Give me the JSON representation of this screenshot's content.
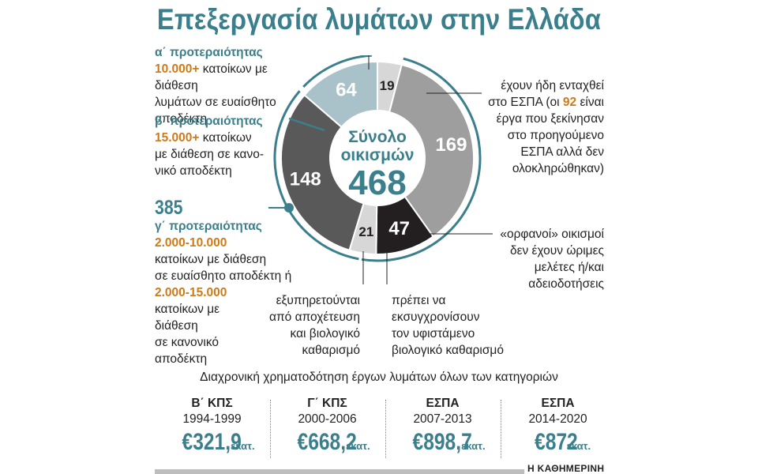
{
  "title": "Επεξεργασία λυμάτων στην Ελλάδα",
  "center": {
    "label_line1": "Σύνολο",
    "label_line2": "οικισμών",
    "total": "468"
  },
  "colors": {
    "teal": "#3b7f8c",
    "orange": "#cf7a16",
    "grey": "#9e9e9e",
    "dark_grey": "#595959",
    "light_teal": "#a9c1c8",
    "black": "#231f20",
    "light_grey": "#d7d7d7"
  },
  "chart_data": [
    {
      "type": "pie",
      "title": "Σύνολο οικισμών 468",
      "slices": [
        {
          "label": "19",
          "value": 19,
          "color": "#d7d7d7"
        },
        {
          "label": "169",
          "value": 169,
          "color": "#9e9e9e"
        },
        {
          "label": "47",
          "value": 47,
          "color": "#231f20"
        },
        {
          "label": "21",
          "value": 21,
          "color": "#d7d7d7"
        },
        {
          "label": "148",
          "value": 148,
          "color": "#595959"
        },
        {
          "label": "64",
          "value": 64,
          "color": "#a9c1c8"
        }
      ],
      "total": 468
    },
    {
      "type": "table",
      "title": "Διαχρονική χρηματοδότηση έργων λυμάτων όλων των κατηγοριών",
      "columns": [
        {
          "program": "Β΄ ΚΠΣ",
          "period": "1994-1999",
          "amount": "€321,9",
          "unit": "εκατ.",
          "value": 321.9
        },
        {
          "program": "Γ΄ ΚΠΣ",
          "period": "2000-2006",
          "amount": "€668,2",
          "unit": "εκατ.",
          "value": 668.2
        },
        {
          "program": "ΕΣΠΑ",
          "period": "2007-2013",
          "amount": "€898,7",
          "unit": "εκατ.",
          "value": 898.7
        },
        {
          "program": "ΕΣΠΑ",
          "period": "2014-2020",
          "amount": "€872",
          "unit": "εκατ.",
          "value": 872
        }
      ]
    }
  ],
  "annotations": {
    "a": {
      "cat": "α΄ προτεραιότητας",
      "num": "10.000+",
      "rest1": " κατοίκων με διάθεση",
      "line2": "λυμάτων σε ευαίσθητο",
      "line3": "αποδέκτη"
    },
    "b": {
      "cat": "β΄ προτεραιότητας",
      "num": "15.000+",
      "rest1": " κατοίκων",
      "line2": "με διάθεση σε κανο-",
      "line3": "νικό αποδέκτη"
    },
    "g": {
      "total": "385",
      "cat": "γ΄ προτεραιότητας",
      "num1": "2.000-10.000",
      "line2": "κατοίκων με διάθεση",
      "line3": "σε ευαίσθητο αποδέκτη ή",
      "num2": "2.000-15.000",
      "line5": "κατοίκων με",
      "line6": "διάθεση",
      "line7": "σε κανονικό",
      "line8": "αποδέκτη"
    },
    "espa": {
      "line1": "έχουν ήδη ενταχθεί",
      "line2a": "στο ΕΣΠΑ (οι ",
      "num": "92",
      "line2b": " είναι",
      "line3": "έργα που ξεκίνησαν",
      "line4": "στο προηγούμενο",
      "line5": "ΕΣΠΑ αλλά δεν",
      "line6": "ολοκληρώθηκαν)"
    },
    "orphans": {
      "line1": "«ορφανοί» οικισμοί",
      "line2": "δεν έχουν ώριμες",
      "line3": "μελέτες ή/και",
      "line4": "αδειοδοτήσεις"
    },
    "served": {
      "line1": "εξυπηρετούνται",
      "line2": "από αποχέτευση",
      "line3": "και βιολογικό",
      "line4": "καθαρισμό"
    },
    "upgrade": {
      "line1": "πρέπει να",
      "line2": "εκσυγχρονίσουν",
      "line3": "τον υφιστάμενο",
      "line4": "βιολογικό καθαρισμό"
    }
  },
  "source": "Η ΚΑΘΗΜΕΡΙΝΗ"
}
